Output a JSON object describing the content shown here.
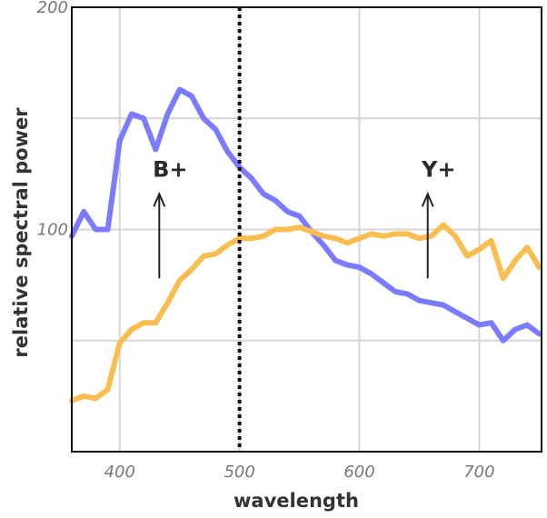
{
  "chart_data": {
    "type": "line",
    "title": "",
    "xlabel": "wavelength",
    "ylabel": "relative spectral power",
    "xlim": [
      360,
      752
    ],
    "ylim": [
      0,
      200
    ],
    "x_ticks": [
      400,
      500,
      600,
      700
    ],
    "y_tick_labels": [
      {
        "value": 200,
        "label": "200"
      },
      {
        "value": 100,
        "label": "100"
      }
    ],
    "y_gridlines": [
      50,
      100,
      150
    ],
    "grid": true,
    "reference_line": {
      "x": 500,
      "style": "dotted"
    },
    "annotations": [
      {
        "text": "B+",
        "x": 433,
        "y": 127,
        "arrow_from": 78,
        "arrow_to": 116
      },
      {
        "text": "Y+",
        "x": 657,
        "y": 127,
        "arrow_from": 78,
        "arrow_to": 116
      }
    ],
    "series": [
      {
        "color": "#7b7bff",
        "points": [
          [
            360,
            97
          ],
          [
            370,
            108
          ],
          [
            380,
            100
          ],
          [
            390,
            100
          ],
          [
            400,
            140
          ],
          [
            410,
            152
          ],
          [
            420,
            150
          ],
          [
            430,
            136
          ],
          [
            440,
            152
          ],
          [
            450,
            163
          ],
          [
            460,
            160
          ],
          [
            470,
            150
          ],
          [
            480,
            145
          ],
          [
            490,
            135
          ],
          [
            500,
            128
          ],
          [
            510,
            123
          ],
          [
            520,
            116
          ],
          [
            530,
            113
          ],
          [
            540,
            108
          ],
          [
            550,
            106
          ],
          [
            560,
            99
          ],
          [
            570,
            93
          ],
          [
            580,
            86
          ],
          [
            590,
            84
          ],
          [
            600,
            83
          ],
          [
            610,
            80
          ],
          [
            620,
            76
          ],
          [
            630,
            72
          ],
          [
            640,
            71
          ],
          [
            650,
            68
          ],
          [
            660,
            67
          ],
          [
            670,
            66
          ],
          [
            680,
            63
          ],
          [
            690,
            60
          ],
          [
            700,
            57
          ],
          [
            710,
            58
          ],
          [
            720,
            50
          ],
          [
            730,
            55
          ],
          [
            740,
            57
          ],
          [
            750,
            53
          ]
        ]
      },
      {
        "color": "#f9be4f",
        "points": [
          [
            360,
            23
          ],
          [
            370,
            25
          ],
          [
            380,
            24
          ],
          [
            390,
            28
          ],
          [
            400,
            49
          ],
          [
            410,
            55
          ],
          [
            420,
            58
          ],
          [
            430,
            58
          ],
          [
            440,
            67
          ],
          [
            450,
            77
          ],
          [
            460,
            82
          ],
          [
            470,
            88
          ],
          [
            480,
            89
          ],
          [
            490,
            93
          ],
          [
            500,
            96
          ],
          [
            510,
            96
          ],
          [
            520,
            97
          ],
          [
            530,
            100
          ],
          [
            540,
            100
          ],
          [
            550,
            101
          ],
          [
            560,
            99
          ],
          [
            570,
            97
          ],
          [
            580,
            96
          ],
          [
            590,
            94
          ],
          [
            600,
            96
          ],
          [
            610,
            98
          ],
          [
            620,
            97
          ],
          [
            630,
            98
          ],
          [
            640,
            98
          ],
          [
            650,
            96
          ],
          [
            660,
            97
          ],
          [
            670,
            102
          ],
          [
            680,
            97
          ],
          [
            690,
            88
          ],
          [
            700,
            91
          ],
          [
            710,
            95
          ],
          [
            720,
            78
          ],
          [
            730,
            86
          ],
          [
            740,
            92
          ],
          [
            750,
            83
          ]
        ]
      }
    ]
  }
}
